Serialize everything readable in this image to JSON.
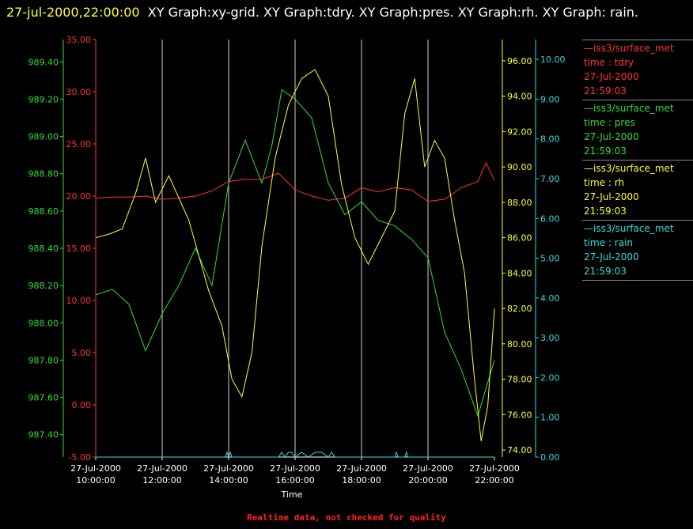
{
  "header": {
    "timestamp": "27-jul-2000,22:00:00",
    "graphs": "XY Graph:xy-grid.  XY Graph:tdry.  XY Graph:pres.  XY Graph:rh.  XY Graph: rain."
  },
  "footer": {
    "text": "Realtime data, not checked for quality"
  },
  "colors": {
    "tdry": "#ff3333",
    "pres": "#33dd33",
    "rh": "#ffff33",
    "rain": "#33dddd",
    "grid": "#cfcfcf"
  },
  "legend": [
    {
      "source": "—iss3/surface_met",
      "label": "time : tdry",
      "date": "27-Jul-2000",
      "time": "21:59:03"
    },
    {
      "source": "—iss3/surface_met",
      "label": "time : pres",
      "date": "27-Jul-2000",
      "time": "21:59:03"
    },
    {
      "source": "—iss3/surface_met",
      "label": "time : rh",
      "date": "27-Jul-2000",
      "time": "21:59:03"
    },
    {
      "source": "—iss3/surface_met",
      "label": "time : rain",
      "date": "27-Jul-2000",
      "time": "21:59:03"
    }
  ],
  "chart_data": {
    "type": "line",
    "xlabel": "Time",
    "x_ticks": [
      {
        "h": 10,
        "date": "27-Jul-2000",
        "time": "10:00:00"
      },
      {
        "h": 12,
        "date": "27-Jul-2000",
        "time": "12:00:00"
      },
      {
        "h": 14,
        "date": "27-Jul-2000",
        "time": "14:00:00"
      },
      {
        "h": 16,
        "date": "27-Jul-2000",
        "time": "16:00:00"
      },
      {
        "h": 18,
        "date": "27-Jul-2000",
        "time": "18:00:00"
      },
      {
        "h": 20,
        "date": "27-Jul-2000",
        "time": "20:00:00"
      },
      {
        "h": 22,
        "date": "27-Jul-2000",
        "time": "22:00:00"
      }
    ],
    "xlim": [
      10,
      22
    ],
    "axes": [
      {
        "id": "tdry",
        "side": "left",
        "ylim": [
          -5,
          35
        ],
        "ticks": [
          "35.00",
          "30.00",
          "25.00",
          "20.00",
          "15.00",
          "10.00",
          "5.00",
          "0.00",
          "-5.00"
        ]
      },
      {
        "id": "pres",
        "side": "left",
        "ylim": [
          987.28,
          989.52
        ],
        "ticks": [
          "989.40",
          "989.20",
          "989.00",
          "988.80",
          "988.60",
          "988.40",
          "988.20",
          "988.00",
          "987.80",
          "987.60",
          "987.40"
        ]
      },
      {
        "id": "rh",
        "side": "right",
        "ylim": [
          73.6,
          97.2
        ],
        "ticks": [
          "96.00",
          "94.00",
          "92.00",
          "90.00",
          "88.00",
          "86.00",
          "84.00",
          "82.00",
          "80.00",
          "78.00",
          "76.00",
          "74.00"
        ]
      },
      {
        "id": "rain",
        "side": "right",
        "ylim": [
          0,
          10.5
        ],
        "ticks": [
          "10.00",
          "9.00",
          "8.00",
          "7.00",
          "6.00",
          "5.00",
          "4.00",
          "3.00",
          "2.00",
          "1.00",
          "0.00"
        ]
      }
    ],
    "series": [
      {
        "name": "tdry",
        "axis": "tdry",
        "x": [
          10,
          10.5,
          11,
          11.5,
          12,
          12.5,
          13,
          13.5,
          14,
          14.5,
          15,
          15.5,
          16,
          16.5,
          17,
          17.5,
          18,
          18.5,
          19,
          19.5,
          20,
          20.5,
          21,
          21.5,
          21.75,
          22
        ],
        "values": [
          19.8,
          19.9,
          19.9,
          20.0,
          19.7,
          19.8,
          20.0,
          20.5,
          21.4,
          21.6,
          21.6,
          22.2,
          20.6,
          20.0,
          19.6,
          19.8,
          20.8,
          20.4,
          20.8,
          20.6,
          19.5,
          19.7,
          20.8,
          21.4,
          23.2,
          21.5
        ]
      },
      {
        "name": "pres",
        "axis": "pres",
        "x": [
          10,
          10.5,
          11,
          11.5,
          12,
          12.5,
          13,
          13.5,
          14,
          14.5,
          15,
          15.3,
          15.6,
          16,
          16.5,
          17,
          17.5,
          18,
          18.5,
          19,
          19.5,
          20,
          20.5,
          21,
          21.5,
          22
        ],
        "values": [
          988.15,
          988.18,
          988.1,
          987.85,
          988.05,
          988.2,
          988.4,
          988.2,
          988.75,
          988.98,
          988.75,
          988.95,
          989.25,
          989.2,
          989.1,
          988.75,
          988.58,
          988.65,
          988.55,
          988.52,
          988.45,
          988.35,
          987.95,
          987.75,
          987.5,
          987.8
        ]
      },
      {
        "name": "rh",
        "axis": "rh",
        "x": [
          10,
          10.4,
          10.8,
          11.2,
          11.5,
          11.8,
          12.2,
          12.8,
          13.4,
          13.8,
          14.1,
          14.4,
          14.7,
          15,
          15.4,
          15.8,
          16.2,
          16.6,
          17,
          17.4,
          17.8,
          18.2,
          18.6,
          19,
          19.3,
          19.6,
          19.9,
          20.2,
          20.5,
          20.8,
          21.1,
          21.4,
          21.6,
          21.8,
          22
        ],
        "values": [
          86.0,
          86.2,
          86.5,
          88.5,
          90.5,
          88.0,
          89.5,
          87.0,
          83.0,
          81.0,
          78.0,
          77.0,
          79.5,
          85.5,
          90.5,
          93.5,
          95.0,
          95.5,
          94.0,
          89.0,
          86.0,
          84.5,
          86.0,
          87.5,
          93.0,
          95.0,
          90.0,
          91.5,
          90.5,
          87.0,
          84.0,
          78.0,
          74.5,
          76.5,
          82.0
        ]
      },
      {
        "name": "rain",
        "axis": "rain",
        "x": [
          10,
          13.9,
          13.95,
          14,
          14.05,
          14.1,
          15.5,
          15.6,
          15.7,
          15.8,
          15.9,
          16,
          16.2,
          16.4,
          16.6,
          16.8,
          17,
          17.1,
          17.2,
          19,
          19.05,
          19.1,
          19.3,
          19.35,
          19.4,
          22
        ],
        "values": [
          0,
          0,
          0.12,
          0,
          0.12,
          0,
          0,
          0.12,
          0,
          0.12,
          0.12,
          0,
          0.12,
          0,
          0.12,
          0.12,
          0,
          0.12,
          0,
          0,
          0.12,
          0,
          0,
          0.12,
          0,
          0
        ]
      }
    ]
  }
}
